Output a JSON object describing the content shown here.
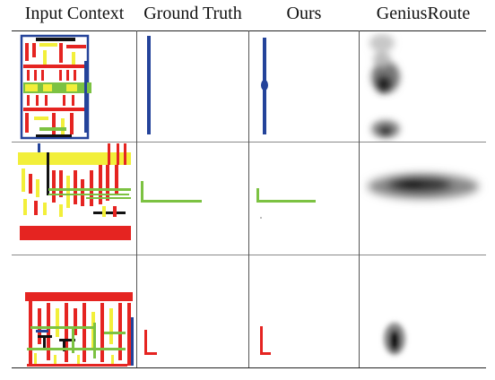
{
  "table": {
    "columns": [
      {
        "label": "Input Context"
      },
      {
        "label": "Ground Truth"
      },
      {
        "label": "Ours"
      },
      {
        "label": "GeniusRoute"
      }
    ],
    "rows": [
      {
        "index": 1,
        "ground_truth_path": "vertical-blue",
        "ours_path": "vertical-blue-with-node",
        "geniusroute": "blurry-vertical-clusters"
      },
      {
        "index": 2,
        "ground_truth_path": "green-L",
        "ours_path": "green-L",
        "geniusroute": "blurry-horizontal-band"
      },
      {
        "index": 3,
        "ground_truth_path": "red-L",
        "ours_path": "red-L",
        "geniusroute": "blurry-small-cluster"
      }
    ]
  },
  "colors": {
    "blue_route": "#24439a",
    "green_route": "#7cc242",
    "red_route": "#e52421",
    "yellow_pin": "#f2ef3a",
    "black_wire": "#111111"
  }
}
